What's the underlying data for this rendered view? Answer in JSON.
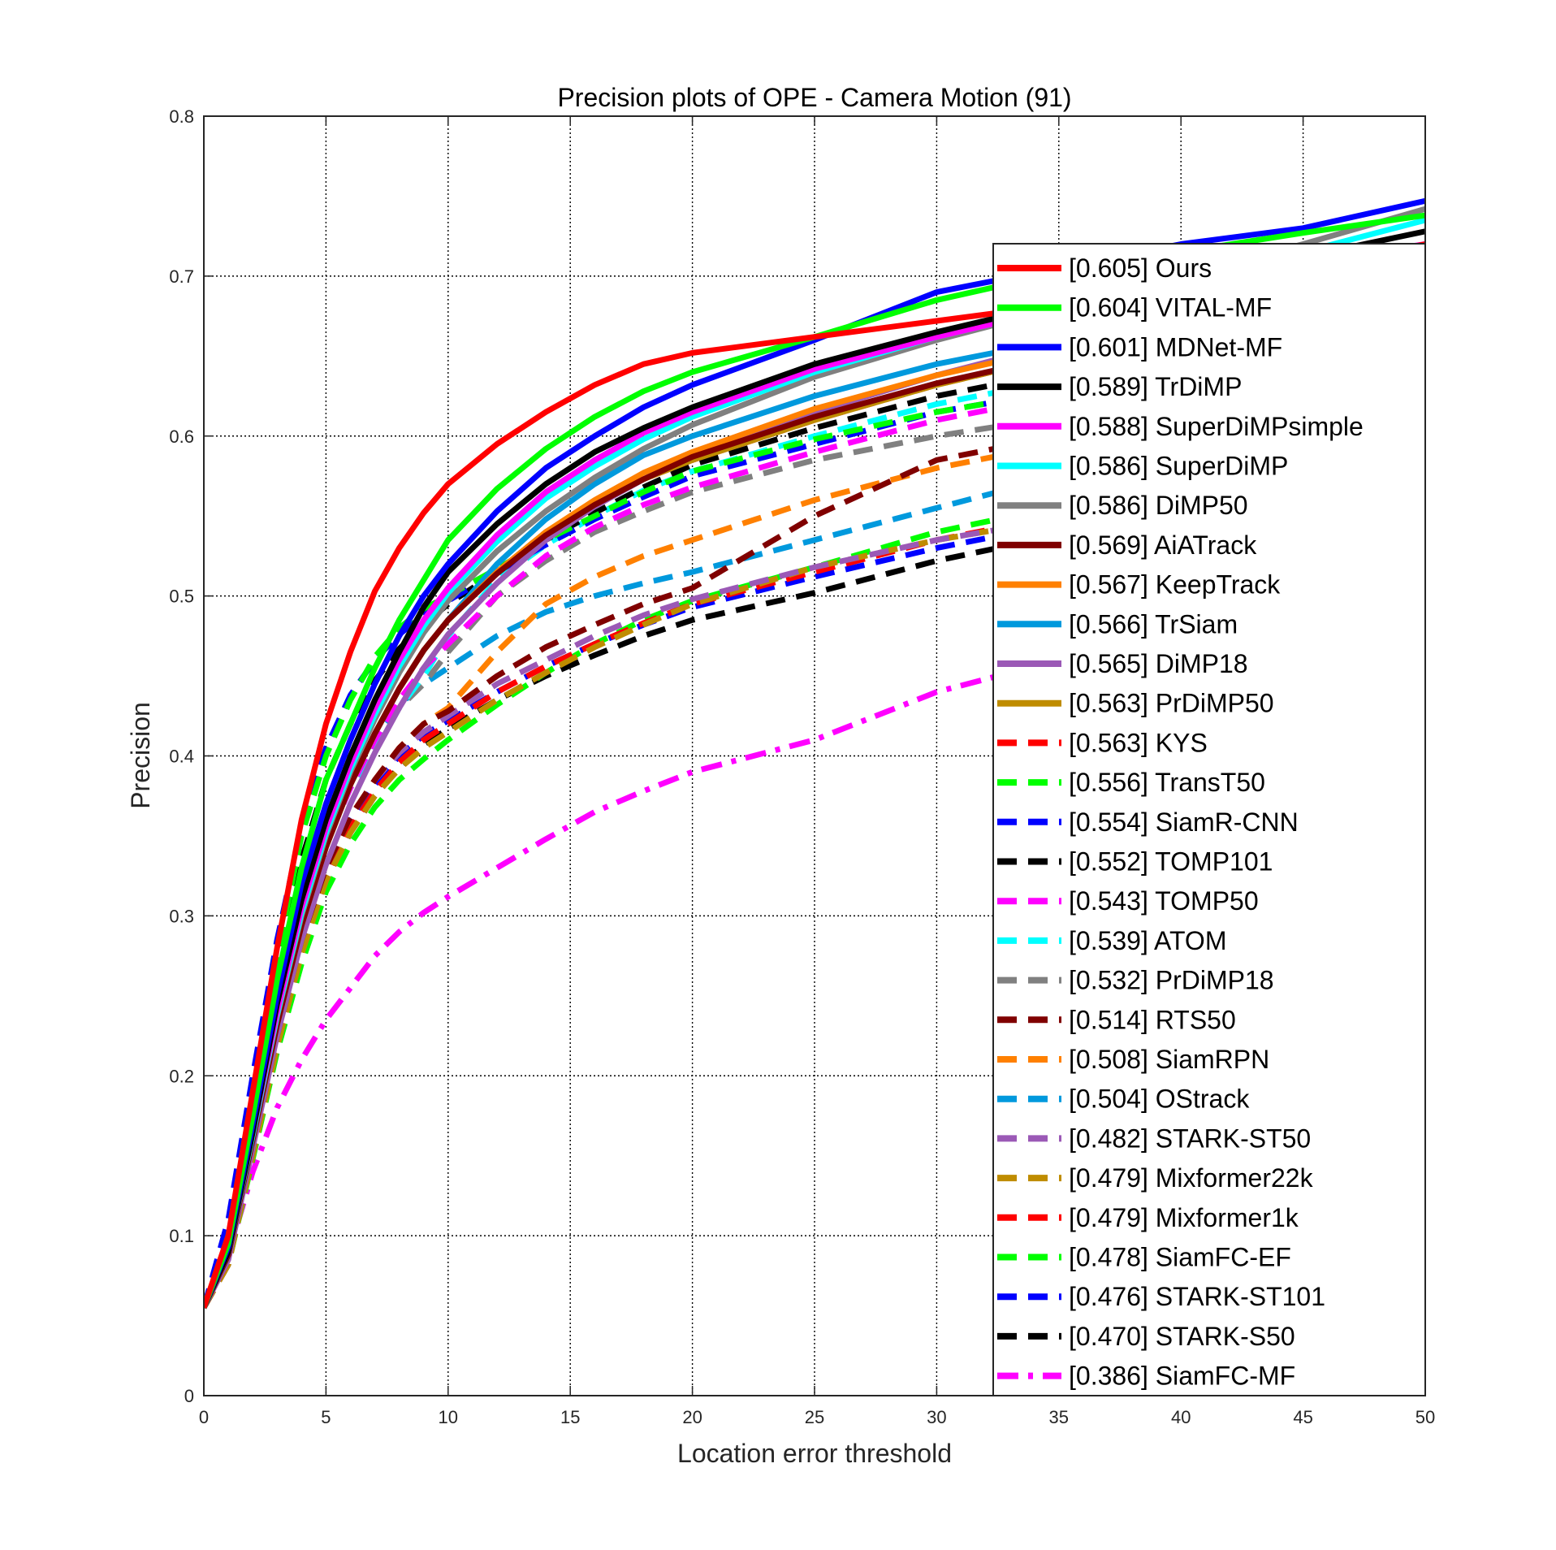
{
  "chart_data": {
    "type": "line",
    "title": "Precision plots of OPE - Camera Motion (91)",
    "xlabel": "Location error threshold",
    "ylabel": "Precision",
    "xlim": [
      0,
      50
    ],
    "ylim": [
      0,
      0.8
    ],
    "xticks": [
      "0",
      "5",
      "10",
      "15",
      "20",
      "25",
      "30",
      "35",
      "40",
      "45",
      "50"
    ],
    "yticks": [
      "0",
      "0.1",
      "0.2",
      "0.3",
      "0.4",
      "0.5",
      "0.6",
      "0.7",
      "0.8"
    ],
    "grid": true,
    "legend_position": "right, overlapping plot area",
    "x": [
      0,
      1,
      2,
      3,
      4,
      5,
      6,
      7,
      8,
      9,
      10,
      12,
      14,
      16,
      18,
      20,
      25,
      30,
      35,
      40,
      45,
      50
    ],
    "series": [
      {
        "name": "[0.605] Ours",
        "color": "#ff0000",
        "style": "solid",
        "values": [
          0.055,
          0.1,
          0.19,
          0.28,
          0.36,
          0.42,
          0.465,
          0.503,
          0.53,
          0.552,
          0.57,
          0.595,
          0.615,
          0.632,
          0.645,
          0.652,
          0.662,
          0.672,
          0.682,
          0.692,
          0.705,
          0.72
        ]
      },
      {
        "name": "[0.604] VITAL-MF",
        "color": "#00ff00",
        "style": "solid",
        "values": [
          0.055,
          0.095,
          0.175,
          0.26,
          0.33,
          0.385,
          0.42,
          0.455,
          0.485,
          0.51,
          0.535,
          0.567,
          0.592,
          0.612,
          0.628,
          0.64,
          0.662,
          0.685,
          0.702,
          0.715,
          0.727,
          0.738
        ]
      },
      {
        "name": "[0.601] MDNet-MF",
        "color": "#0000ff",
        "style": "solid",
        "values": [
          0.055,
          0.093,
          0.17,
          0.25,
          0.32,
          0.37,
          0.41,
          0.445,
          0.475,
          0.5,
          0.52,
          0.553,
          0.58,
          0.6,
          0.618,
          0.632,
          0.66,
          0.69,
          0.705,
          0.72,
          0.73,
          0.747
        ]
      },
      {
        "name": "[0.589] TrDiMP",
        "color": "#000000",
        "style": "solid",
        "values": [
          0.055,
          0.09,
          0.165,
          0.245,
          0.31,
          0.36,
          0.4,
          0.435,
          0.465,
          0.493,
          0.515,
          0.545,
          0.57,
          0.59,
          0.605,
          0.618,
          0.645,
          0.665,
          0.683,
          0.698,
          0.712,
          0.728
        ]
      },
      {
        "name": "[0.588] SuperDiMPsimple",
        "color": "#ff00ff",
        "style": "solid",
        "values": [
          0.055,
          0.09,
          0.165,
          0.24,
          0.305,
          0.355,
          0.395,
          0.43,
          0.46,
          0.485,
          0.505,
          0.538,
          0.565,
          0.585,
          0.602,
          0.615,
          0.642,
          0.662,
          0.68,
          0.695,
          0.708,
          0.72
        ]
      },
      {
        "name": "[0.586] SuperDiMP",
        "color": "#00ffff",
        "style": "solid",
        "values": [
          0.055,
          0.09,
          0.163,
          0.238,
          0.302,
          0.352,
          0.392,
          0.426,
          0.456,
          0.481,
          0.502,
          0.534,
          0.561,
          0.581,
          0.598,
          0.612,
          0.64,
          0.662,
          0.68,
          0.697,
          0.715,
          0.735
        ]
      },
      {
        "name": "[0.586] DiMP50",
        "color": "#808080",
        "style": "solid",
        "values": [
          0.055,
          0.09,
          0.163,
          0.237,
          0.3,
          0.35,
          0.39,
          0.423,
          0.452,
          0.477,
          0.497,
          0.528,
          0.553,
          0.574,
          0.592,
          0.607,
          0.637,
          0.66,
          0.68,
          0.7,
          0.72,
          0.742
        ]
      },
      {
        "name": "[0.569] AiATrack",
        "color": "#800000",
        "style": "solid",
        "values": [
          0.055,
          0.088,
          0.16,
          0.232,
          0.294,
          0.343,
          0.382,
          0.414,
          0.442,
          0.466,
          0.485,
          0.514,
          0.538,
          0.557,
          0.573,
          0.587,
          0.612,
          0.633,
          0.65,
          0.665,
          0.678,
          0.69
        ]
      },
      {
        "name": "[0.567] KeepTrack",
        "color": "#ff8000",
        "style": "solid",
        "values": [
          0.055,
          0.088,
          0.16,
          0.232,
          0.294,
          0.343,
          0.382,
          0.414,
          0.442,
          0.466,
          0.485,
          0.515,
          0.54,
          0.56,
          0.577,
          0.59,
          0.617,
          0.638,
          0.655,
          0.668,
          0.68,
          0.69
        ]
      },
      {
        "name": "[0.566] TrSiam",
        "color": "#0099dd",
        "style": "solid",
        "values": [
          0.055,
          0.088,
          0.16,
          0.232,
          0.294,
          0.343,
          0.382,
          0.414,
          0.442,
          0.466,
          0.485,
          0.52,
          0.548,
          0.57,
          0.588,
          0.6,
          0.625,
          0.645,
          0.66,
          0.672,
          0.682,
          0.69
        ]
      },
      {
        "name": "[0.565] DiMP18",
        "color": "#9b59b6",
        "style": "solid",
        "values": [
          0.055,
          0.085,
          0.155,
          0.225,
          0.285,
          0.332,
          0.37,
          0.402,
          0.43,
          0.455,
          0.476,
          0.508,
          0.535,
          0.556,
          0.573,
          0.588,
          0.615,
          0.638,
          0.658,
          0.674,
          0.688,
          0.7
        ]
      },
      {
        "name": "[0.563] PrDiMP50",
        "color": "#bf8c00",
        "style": "solid",
        "values": [
          0.055,
          0.088,
          0.16,
          0.232,
          0.294,
          0.343,
          0.382,
          0.414,
          0.442,
          0.466,
          0.485,
          0.515,
          0.54,
          0.558,
          0.573,
          0.585,
          0.61,
          0.632,
          0.65,
          0.665,
          0.678,
          0.688
        ]
      },
      {
        "name": "[0.563] KYS",
        "color": "#ff0000",
        "style": "dashed",
        "values": [
          0.055,
          0.088,
          0.16,
          0.232,
          0.294,
          0.343,
          0.382,
          0.414,
          0.442,
          0.466,
          0.485,
          0.515,
          0.54,
          0.558,
          0.573,
          0.585,
          0.61,
          0.632,
          0.65,
          0.665,
          0.678,
          0.688
        ]
      },
      {
        "name": "[0.556] TransT50",
        "color": "#00ff00",
        "style": "dashed",
        "values": [
          0.055,
          0.1,
          0.19,
          0.275,
          0.35,
          0.4,
          0.435,
          0.462,
          0.48,
          0.492,
          0.5,
          0.517,
          0.535,
          0.55,
          0.565,
          0.578,
          0.598,
          0.615,
          0.628,
          0.64,
          0.65,
          0.66
        ]
      },
      {
        "name": "[0.554] SiamR-CNN",
        "color": "#0000ff",
        "style": "dashed",
        "values": [
          0.055,
          0.11,
          0.2,
          0.285,
          0.355,
          0.405,
          0.438,
          0.46,
          0.476,
          0.488,
          0.497,
          0.515,
          0.532,
          0.548,
          0.562,
          0.575,
          0.595,
          0.615,
          0.628,
          0.64,
          0.65,
          0.66
        ]
      },
      {
        "name": "[0.552] TOMP101",
        "color": "#000000",
        "style": "dashed",
        "values": [
          0.055,
          0.095,
          0.18,
          0.265,
          0.335,
          0.385,
          0.42,
          0.447,
          0.467,
          0.482,
          0.495,
          0.515,
          0.535,
          0.552,
          0.568,
          0.582,
          0.605,
          0.625,
          0.64,
          0.652,
          0.662,
          0.67
        ]
      },
      {
        "name": "[0.543] TOMP50",
        "color": "#ff00ff",
        "style": "dashed",
        "values": [
          0.055,
          0.09,
          0.165,
          0.24,
          0.3,
          0.345,
          0.38,
          0.41,
          0.435,
          0.455,
          0.47,
          0.5,
          0.525,
          0.543,
          0.557,
          0.568,
          0.59,
          0.61,
          0.625,
          0.638,
          0.648,
          0.655
        ]
      },
      {
        "name": "[0.539] ATOM",
        "color": "#00ffff",
        "style": "dashed",
        "values": [
          0.055,
          0.09,
          0.165,
          0.24,
          0.3,
          0.345,
          0.38,
          0.405,
          0.43,
          0.45,
          0.475,
          0.51,
          0.532,
          0.55,
          0.566,
          0.578,
          0.6,
          0.62,
          0.635,
          0.648,
          0.658,
          0.665
        ]
      },
      {
        "name": "[0.532] PrDiMP18",
        "color": "#808080",
        "style": "dashed",
        "values": [
          0.055,
          0.09,
          0.165,
          0.24,
          0.3,
          0.345,
          0.38,
          0.405,
          0.43,
          0.445,
          0.465,
          0.5,
          0.522,
          0.54,
          0.553,
          0.565,
          0.585,
          0.6,
          0.612,
          0.622,
          0.63,
          0.638
        ]
      },
      {
        "name": "[0.514] RTS50",
        "color": "#800000",
        "style": "dashed",
        "values": [
          0.055,
          0.085,
          0.155,
          0.225,
          0.285,
          0.33,
          0.362,
          0.385,
          0.405,
          0.42,
          0.428,
          0.45,
          0.468,
          0.482,
          0.495,
          0.505,
          0.55,
          0.585,
          0.6,
          0.61,
          0.618,
          0.625
        ]
      },
      {
        "name": "[0.508] SiamRPN",
        "color": "#ff8000",
        "style": "dashed",
        "values": [
          0.055,
          0.085,
          0.155,
          0.225,
          0.285,
          0.33,
          0.362,
          0.385,
          0.405,
          0.42,
          0.43,
          0.465,
          0.495,
          0.512,
          0.525,
          0.535,
          0.56,
          0.58,
          0.595,
          0.605,
          0.612,
          0.618
        ]
      },
      {
        "name": "[0.504] OStrack",
        "color": "#0099dd",
        "style": "dashed",
        "values": [
          0.055,
          0.09,
          0.168,
          0.245,
          0.305,
          0.35,
          0.385,
          0.412,
          0.432,
          0.445,
          0.455,
          0.475,
          0.49,
          0.5,
          0.508,
          0.515,
          0.535,
          0.555,
          0.575,
          0.59,
          0.6,
          0.608
        ]
      },
      {
        "name": "[0.482] STARK-ST50",
        "color": "#9b59b6",
        "style": "dashed",
        "values": [
          0.055,
          0.085,
          0.155,
          0.225,
          0.285,
          0.33,
          0.362,
          0.385,
          0.402,
          0.415,
          0.425,
          0.445,
          0.46,
          0.475,
          0.488,
          0.498,
          0.518,
          0.535,
          0.548,
          0.558,
          0.565,
          0.572
        ]
      },
      {
        "name": "[0.479] Mixformer22k",
        "color": "#bf8c00",
        "style": "dashed",
        "values": [
          0.055,
          0.082,
          0.15,
          0.218,
          0.276,
          0.322,
          0.352,
          0.375,
          0.392,
          0.405,
          0.415,
          0.435,
          0.452,
          0.468,
          0.482,
          0.495,
          0.518,
          0.535,
          0.548,
          0.558,
          0.565,
          0.572
        ]
      },
      {
        "name": "[0.479] Mixformer1k",
        "color": "#ff0000",
        "style": "dashed",
        "values": [
          0.055,
          0.082,
          0.152,
          0.22,
          0.278,
          0.325,
          0.355,
          0.378,
          0.396,
          0.41,
          0.42,
          0.44,
          0.456,
          0.47,
          0.483,
          0.495,
          0.515,
          0.535,
          0.55,
          0.56,
          0.568,
          0.575
        ]
      },
      {
        "name": "[0.478] SiamFC-EF",
        "color": "#00ff00",
        "style": "dashed",
        "values": [
          0.055,
          0.082,
          0.148,
          0.215,
          0.27,
          0.315,
          0.345,
          0.368,
          0.385,
          0.398,
          0.41,
          0.432,
          0.452,
          0.47,
          0.485,
          0.497,
          0.518,
          0.54,
          0.556,
          0.566,
          0.574,
          0.58
        ]
      },
      {
        "name": "[0.476] STARK-ST101",
        "color": "#0000ff",
        "style": "dashed",
        "values": [
          0.055,
          0.085,
          0.155,
          0.225,
          0.283,
          0.328,
          0.36,
          0.382,
          0.4,
          0.413,
          0.422,
          0.44,
          0.456,
          0.47,
          0.482,
          0.493,
          0.512,
          0.53,
          0.545,
          0.556,
          0.565,
          0.572
        ]
      },
      {
        "name": "[0.470] STARK-S50",
        "color": "#000000",
        "style": "dashed",
        "values": [
          0.055,
          0.082,
          0.15,
          0.22,
          0.278,
          0.322,
          0.352,
          0.375,
          0.393,
          0.407,
          0.417,
          0.435,
          0.45,
          0.463,
          0.475,
          0.485,
          0.502,
          0.522,
          0.538,
          0.55,
          0.56,
          0.568
        ]
      },
      {
        "name": "[0.386] SiamFC-MF",
        "color": "#ff00ff",
        "style": "dashdot",
        "values": [
          0.055,
          0.088,
          0.14,
          0.18,
          0.21,
          0.235,
          0.255,
          0.275,
          0.29,
          0.302,
          0.312,
          0.33,
          0.348,
          0.365,
          0.378,
          0.39,
          0.41,
          0.44,
          0.46,
          0.475,
          0.49,
          0.505
        ]
      }
    ]
  }
}
